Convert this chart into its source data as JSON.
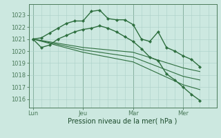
{
  "background_color": "#cce8e0",
  "grid_color": "#aad0c8",
  "line_color": "#2d6e3e",
  "marker_color": "#2d6e3e",
  "ylabel_ticks": [
    1016,
    1017,
    1018,
    1019,
    1020,
    1021,
    1022,
    1023
  ],
  "ylim": [
    1015.3,
    1023.9
  ],
  "xlabel": "Pression niveau de la mer( hPa )",
  "x_tick_labels": [
    "Lun",
    "Jeu",
    "Mar",
    "Mer"
  ],
  "x_tick_positions": [
    0,
    6,
    12,
    18
  ],
  "xlim": [
    -0.5,
    22
  ],
  "series": [
    {
      "x": [
        0,
        1,
        2,
        3,
        4,
        5,
        6,
        7,
        8,
        9,
        10,
        11,
        12,
        13,
        14,
        15,
        16,
        17,
        18,
        19,
        20
      ],
      "y": [
        1021.0,
        1021.1,
        1021.5,
        1021.9,
        1022.3,
        1022.5,
        1022.5,
        1023.3,
        1023.4,
        1022.7,
        1022.6,
        1022.6,
        1022.2,
        1021.0,
        1020.8,
        1021.6,
        1020.3,
        1020.0,
        1019.6,
        1019.3,
        1018.7
      ],
      "marker": "D",
      "markersize": 2.2,
      "linewidth": 1.0
    },
    {
      "x": [
        0,
        1,
        2,
        3,
        4,
        5,
        6,
        7,
        8,
        9,
        10,
        11,
        12,
        13,
        14,
        15,
        16,
        17,
        18,
        19,
        20
      ],
      "y": [
        1021.0,
        1020.3,
        1020.5,
        1021.0,
        1021.3,
        1021.6,
        1021.8,
        1021.9,
        1022.1,
        1021.9,
        1021.6,
        1021.2,
        1020.8,
        1020.2,
        1019.5,
        1019.2,
        1018.1,
        1017.6,
        1017.0,
        1016.4,
        1015.9
      ],
      "marker": "D",
      "markersize": 2.2,
      "linewidth": 1.0
    },
    {
      "x": [
        0,
        6,
        12,
        18,
        20
      ],
      "y": [
        1021.0,
        1020.3,
        1019.9,
        1018.6,
        1018.3
      ],
      "marker": null,
      "linewidth": 0.8
    },
    {
      "x": [
        0,
        6,
        12,
        18,
        20
      ],
      "y": [
        1021.0,
        1020.1,
        1019.5,
        1017.9,
        1017.6
      ],
      "marker": null,
      "linewidth": 0.8
    },
    {
      "x": [
        0,
        6,
        12,
        18,
        20
      ],
      "y": [
        1021.0,
        1019.9,
        1019.1,
        1017.2,
        1016.8
      ],
      "marker": null,
      "linewidth": 0.8
    }
  ],
  "vline_positions": [
    0,
    6,
    12,
    18
  ],
  "tick_fontsize": 6.0,
  "xlabel_fontsize": 7.0,
  "tick_color": "#1a4a2a",
  "spine_color": "#4a7a5a"
}
